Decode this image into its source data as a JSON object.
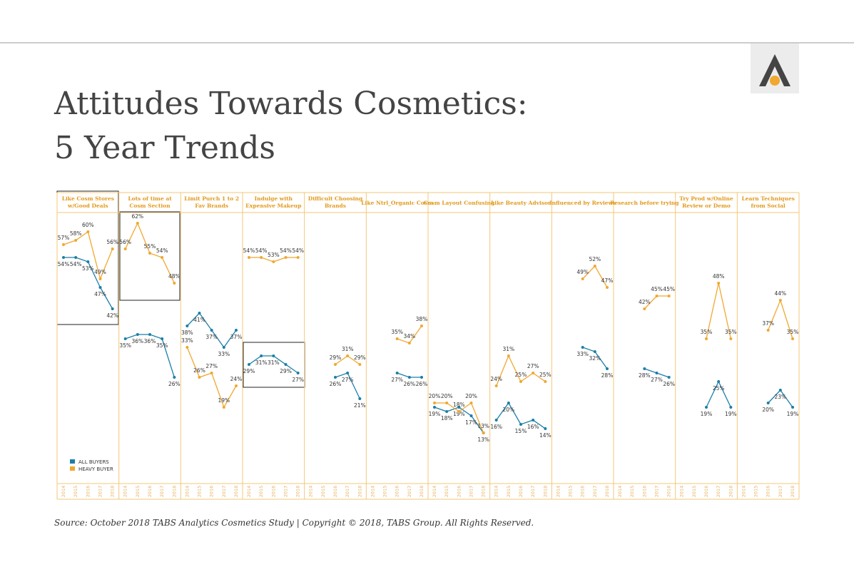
{
  "chart_data": {
    "type": "line",
    "title": [
      "Attitudes Towards Cosmetics:",
      "5 Year Trends"
    ],
    "categories": [
      "2014",
      "2015",
      "2016",
      "2017",
      "2018"
    ],
    "series": [
      {
        "name": "ALL BUYERS",
        "color": "#1b7fa8"
      },
      {
        "name": "HEAVY BUYER",
        "color": "#f0a830"
      }
    ],
    "panels": [
      {
        "title": [
          "Like Cosm Stores",
          "w/Good Deals"
        ],
        "series": [
          {
            "values": [
              54,
              54,
              53,
              47,
              42
            ]
          },
          {
            "values": [
              57,
              58,
              60,
              49,
              56
            ]
          }
        ]
      },
      {
        "title": [
          "Lots of time at",
          "Cosm Section"
        ],
        "series": [
          {
            "values": [
              35,
              36,
              36,
              35,
              26
            ]
          },
          {
            "values": [
              56,
              62,
              55,
              54,
              48
            ]
          }
        ]
      },
      {
        "title": [
          "Limit Purch 1 to 2",
          "Fav Brands"
        ],
        "series": [
          {
            "values": [
              38,
              41,
              37,
              33,
              37
            ]
          },
          {
            "values": [
              33,
              26,
              27,
              19,
              24
            ]
          }
        ]
      },
      {
        "title": [
          "Indulge with",
          "Expensive Makeup"
        ],
        "series": [
          {
            "values": [
              29,
              31,
              31,
              29,
              27
            ]
          },
          {
            "values": [
              54,
              54,
              53,
              54,
              54
            ]
          }
        ]
      },
      {
        "title": [
          "Difficult Choosing",
          "Brands"
        ],
        "series": [
          {
            "values": [
              null,
              null,
              26,
              27,
              21
            ]
          },
          {
            "values": [
              null,
              null,
              29,
              31,
              29
            ]
          }
        ]
      },
      {
        "title": [
          "Like Ntrl_Organic Cosm"
        ],
        "series": [
          {
            "values": [
              null,
              null,
              27,
              26,
              26
            ]
          },
          {
            "values": [
              null,
              null,
              35,
              34,
              38
            ]
          }
        ]
      },
      {
        "title": [
          "Cosm Layout Confusing"
        ],
        "series": [
          {
            "values": [
              19,
              18,
              19,
              17,
              13
            ]
          },
          {
            "values": [
              20,
              20,
              18,
              20,
              13
            ]
          }
        ]
      },
      {
        "title": [
          "Like Beauty Advisor"
        ],
        "series": [
          {
            "values": [
              16,
              20,
              15,
              16,
              14
            ]
          },
          {
            "values": [
              24,
              31,
              25,
              27,
              25
            ]
          }
        ]
      },
      {
        "title": [
          "Influenced by Reviews"
        ],
        "series": [
          {
            "values": [
              null,
              null,
              33,
              32,
              28
            ]
          },
          {
            "values": [
              null,
              null,
              49,
              52,
              47
            ]
          }
        ]
      },
      {
        "title": [
          "Research before trying"
        ],
        "series": [
          {
            "values": [
              null,
              null,
              28,
              27,
              26
            ]
          },
          {
            "values": [
              null,
              null,
              42,
              45,
              45
            ]
          }
        ]
      },
      {
        "title": [
          "Try Prod w/Online",
          "Review or Demo"
        ],
        "series": [
          {
            "values": [
              null,
              null,
              19,
              25,
              19
            ]
          },
          {
            "values": [
              null,
              null,
              35,
              48,
              35
            ]
          }
        ]
      },
      {
        "title": [
          "Learn Techniques",
          "from Social"
        ],
        "series": [
          {
            "values": [
              null,
              null,
              20,
              23,
              19
            ]
          },
          {
            "values": [
              null,
              null,
              37,
              44,
              35
            ]
          }
        ]
      }
    ],
    "value_labels": [
      [
        [
          "54%",
          "54%",
          "53%",
          "47%",
          "42%"
        ],
        [
          "57%",
          "58%",
          "60%",
          "49%",
          "56%"
        ]
      ],
      [
        [
          "35%",
          "36%",
          "36%",
          "35%",
          "26%"
        ],
        [
          "56%",
          "62%",
          "55%",
          "54%",
          "48%"
        ]
      ],
      [
        [
          "38%",
          "41%",
          "37%",
          "33%",
          "37%"
        ],
        [
          "33%",
          "26%",
          "27%",
          "19%",
          "24%"
        ]
      ],
      [
        [
          "29%",
          "31%",
          "31%",
          "29%",
          "27%"
        ],
        [
          "54%",
          "54%",
          "53%",
          "54%",
          "54%"
        ]
      ],
      [
        [
          null,
          null,
          "26%",
          "27%",
          "21%"
        ],
        [
          null,
          null,
          "29%",
          "31%",
          "29%"
        ]
      ],
      [
        [
          null,
          null,
          "27%",
          "26%",
          "26%"
        ],
        [
          null,
          null,
          "35%",
          "34%",
          "38%"
        ]
      ],
      [
        [
          "19%",
          "18%",
          "19%",
          "17%",
          "13%"
        ],
        [
          "20%",
          "20%",
          "18%",
          "20%",
          "13%"
        ]
      ],
      [
        [
          "16%",
          "20%",
          "15%",
          "16%",
          "14%"
        ],
        [
          "24%",
          "31%",
          "25%",
          "27%",
          "25%"
        ]
      ],
      [
        [
          null,
          null,
          "33%",
          "32%",
          "28%"
        ],
        [
          null,
          null,
          "49%",
          "52%",
          "47%"
        ]
      ],
      [
        [
          null,
          null,
          "28%",
          "27%",
          "26%"
        ],
        [
          null,
          null,
          "42%",
          "45%",
          "45%"
        ]
      ],
      [
        [
          null,
          null,
          "19%",
          "25%",
          "19%"
        ],
        [
          null,
          null,
          "35%",
          "48%",
          "35%"
        ]
      ],
      [
        [
          null,
          null,
          "20%",
          "23%",
          "19%"
        ],
        [
          null,
          null,
          "37%",
          "44%",
          "35%"
        ]
      ]
    ],
    "source": "Source: October 2018 TABS Analytics Cosmetics Study | Copyright © 2018, TABS Group. All Rights Reserved."
  }
}
